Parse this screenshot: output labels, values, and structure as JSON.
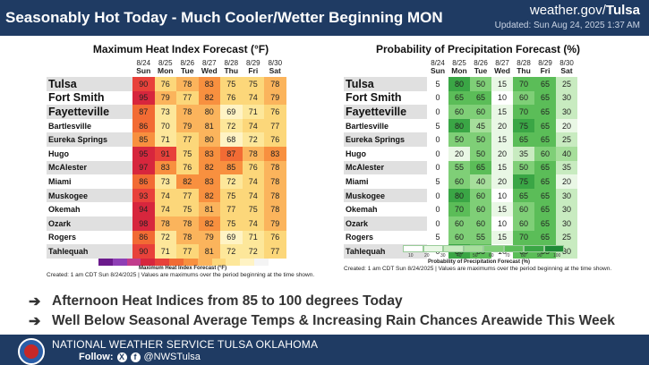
{
  "header": {
    "title": "Seasonably Hot Today - Much Cooler/Wetter Beginning MON",
    "site_prefix": "weather.gov/",
    "site_office": "Tulsa",
    "updated": "Updated: Sun Aug 24, 2025 1:37 AM"
  },
  "days": [
    {
      "date": "8/24",
      "day": "Sun"
    },
    {
      "date": "8/25",
      "day": "Mon"
    },
    {
      "date": "8/26",
      "day": "Tue"
    },
    {
      "date": "8/27",
      "day": "Wed"
    },
    {
      "date": "8/28",
      "day": "Thu"
    },
    {
      "date": "8/29",
      "day": "Fri"
    },
    {
      "date": "8/30",
      "day": "Sat"
    }
  ],
  "locations": [
    "Tulsa",
    "Fort Smith",
    "Fayetteville",
    "Bartlesville",
    "Eureka Springs",
    "Hugo",
    "McAlester",
    "Miami",
    "Muskogee",
    "Okemah",
    "Ozark",
    "Rogers",
    "Tahlequah"
  ],
  "heat_index": {
    "title": "Maximum Heat Index Forecast (°F)",
    "values": [
      [
        90,
        76,
        78,
        83,
        75,
        75,
        78
      ],
      [
        95,
        79,
        77,
        82,
        76,
        74,
        79
      ],
      [
        87,
        73,
        78,
        80,
        69,
        71,
        76
      ],
      [
        86,
        70,
        79,
        81,
        72,
        74,
        77
      ],
      [
        85,
        71,
        77,
        80,
        68,
        72,
        76
      ],
      [
        95,
        91,
        75,
        83,
        87,
        78,
        83
      ],
      [
        97,
        83,
        76,
        82,
        85,
        76,
        78
      ],
      [
        86,
        73,
        82,
        83,
        72,
        74,
        78
      ],
      [
        93,
        74,
        77,
        82,
        75,
        74,
        78
      ],
      [
        94,
        74,
        75,
        81,
        77,
        75,
        78
      ],
      [
        98,
        78,
        78,
        82,
        75,
        74,
        79
      ],
      [
        86,
        72,
        78,
        79,
        69,
        71,
        76
      ],
      [
        90,
        71,
        77,
        81,
        72,
        72,
        77
      ]
    ],
    "legend_label": "Maximum Heat Index Forecast (°F)",
    "footnote": "Created: 1 am CDT Sun 8/24/2025  |  Values are maximums over the period beginning at the time shown."
  },
  "pop": {
    "title": "Probability of Precipitation Forecast (%)",
    "values": [
      [
        5,
        80,
        50,
        15,
        70,
        65,
        25
      ],
      [
        0,
        65,
        65,
        10,
        60,
        65,
        30
      ],
      [
        0,
        60,
        60,
        15,
        70,
        65,
        30
      ],
      [
        5,
        80,
        45,
        20,
        75,
        65,
        20
      ],
      [
        0,
        50,
        50,
        15,
        65,
        65,
        25
      ],
      [
        0,
        20,
        50,
        20,
        35,
        60,
        40
      ],
      [
        0,
        55,
        65,
        15,
        50,
        65,
        35
      ],
      [
        5,
        60,
        40,
        20,
        75,
        65,
        20
      ],
      [
        0,
        80,
        60,
        10,
        65,
        65,
        30
      ],
      [
        0,
        70,
        60,
        15,
        60,
        65,
        30
      ],
      [
        0,
        60,
        60,
        10,
        60,
        65,
        30
      ],
      [
        5,
        60,
        55,
        15,
        70,
        65,
        25
      ],
      [
        0,
        80,
        65,
        10,
        65,
        65,
        30
      ]
    ],
    "legend_ticks": [
      "10",
      "20",
      "30",
      "40",
      "50",
      "60",
      "70",
      "80",
      "90",
      "100"
    ],
    "legend_label": "Probability of Precipitation Forecast (%)",
    "footnote": "Created: 1 am CDT Sun 8/24/2025  |  Values are maximums over the period beginning at the time shown."
  },
  "bullets": [
    "Afternoon Heat Indices from 85 to 100 degrees Today",
    "Well Below Seasonal Average Temps & Increasing Rain Chances Areawide This Week"
  ],
  "footer": {
    "org": "NATIONAL WEATHER SERVICE TULSA OKLAHOMA",
    "follow_label": "Follow:",
    "handle": "@NWSTulsa",
    "x_glyph": "X",
    "fb_glyph": "f"
  },
  "colors": {
    "header_bg": "#1f3b63",
    "heat_scale": [
      "#fff3c4",
      "#fde79a",
      "#fcd77a",
      "#fbb45c",
      "#f8903f",
      "#f26b34",
      "#e8413a",
      "#d7263d"
    ],
    "pop_scale": [
      "#ffffff",
      "#e9f7e5",
      "#c8ebc0",
      "#a6de9b",
      "#7fcf77",
      "#5bbd58",
      "#3aa645",
      "#1f8a36"
    ]
  }
}
